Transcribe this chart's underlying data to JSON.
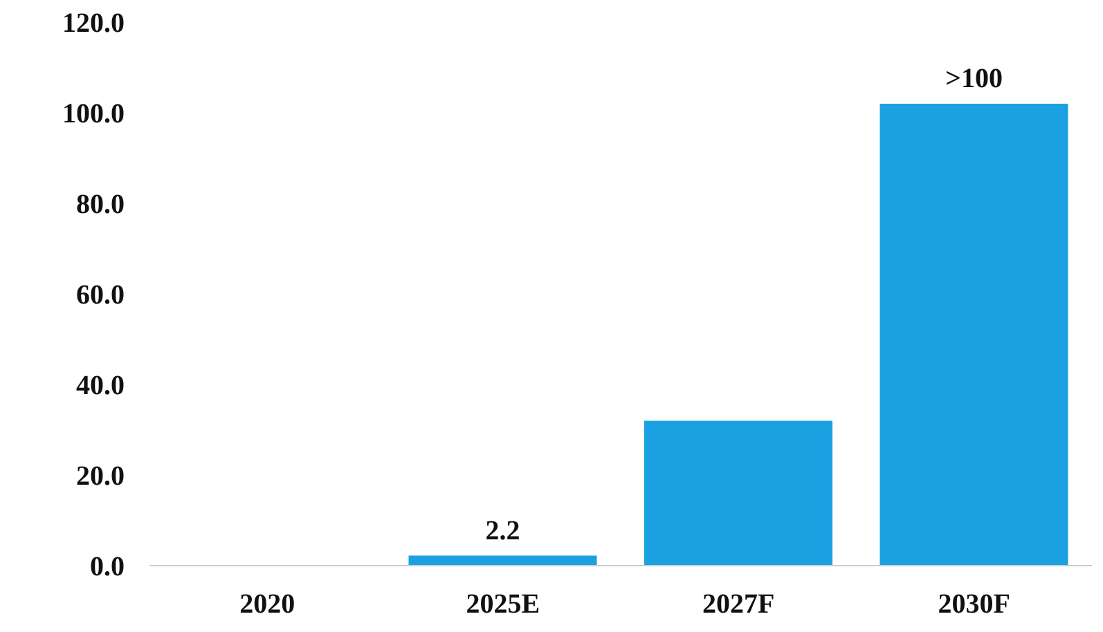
{
  "chart_data": {
    "type": "bar",
    "categories": [
      "2020",
      "2025E",
      "2027F",
      "2030F"
    ],
    "values": [
      null,
      2.2,
      32,
      102
    ],
    "color": "#1ba1e2",
    "value_labels": [
      null,
      "2.2",
      null,
      ">100"
    ],
    "ylim": [
      0,
      120
    ],
    "yticks": [
      {
        "value": 0,
        "label": "0.0"
      },
      {
        "value": 20,
        "label": "20.0"
      },
      {
        "value": 40,
        "label": "40.0"
      },
      {
        "value": 60,
        "label": "60.0"
      },
      {
        "value": 80,
        "label": "80.0"
      },
      {
        "value": 100,
        "label": "100.0"
      },
      {
        "value": 120,
        "label": "120.0"
      }
    ],
    "grid": false
  }
}
